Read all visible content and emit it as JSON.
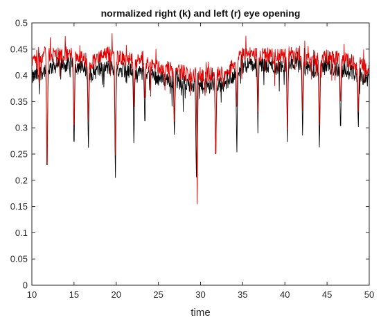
{
  "chart_data": {
    "type": "line",
    "title": "normalized right (k) and left (r) eye opening",
    "xlabel": "time",
    "ylabel": "",
    "xlim": [
      10,
      50
    ],
    "ylim": [
      0,
      0.5
    ],
    "xticks": [
      "10",
      "15",
      "20",
      "25",
      "30",
      "35",
      "40",
      "45",
      "50"
    ],
    "yticks": [
      "0",
      "0.05",
      "0.1",
      "0.15",
      "0.2",
      "0.25",
      "0.3",
      "0.35",
      "0.4",
      "0.45",
      "0.5"
    ],
    "grid": false,
    "legend": "none",
    "series": [
      {
        "color": "#000000",
        "baseline": [
          [
            10,
            0.395
          ],
          [
            11.5,
            0.41
          ],
          [
            13,
            0.42
          ],
          [
            15,
            0.42
          ],
          [
            17,
            0.405
          ],
          [
            19,
            0.415
          ],
          [
            21,
            0.41
          ],
          [
            23,
            0.405
          ],
          [
            25,
            0.395
          ],
          [
            27,
            0.39
          ],
          [
            29,
            0.38
          ],
          [
            31,
            0.38
          ],
          [
            33,
            0.385
          ],
          [
            35,
            0.42
          ],
          [
            37,
            0.42
          ],
          [
            39,
            0.415
          ],
          [
            41,
            0.425
          ],
          [
            43,
            0.41
          ],
          [
            45,
            0.415
          ],
          [
            47,
            0.41
          ],
          [
            49,
            0.4
          ],
          [
            50,
            0.39
          ]
        ],
        "blinks": [
          [
            11.8,
            0.18
          ],
          [
            15.0,
            0.235
          ],
          [
            16.7,
            0.245
          ],
          [
            19.9,
            0.18
          ],
          [
            22.1,
            0.255
          ],
          [
            23.4,
            0.29
          ],
          [
            26.9,
            0.275
          ],
          [
            29.5,
            0.185
          ],
          [
            31.8,
            0.215
          ],
          [
            34.3,
            0.235
          ],
          [
            36.8,
            0.29
          ],
          [
            40.3,
            0.255
          ],
          [
            42.1,
            0.27
          ],
          [
            44.1,
            0.245
          ],
          [
            46.6,
            0.275
          ],
          [
            48.7,
            0.29
          ]
        ]
      },
      {
        "color": "#e00000",
        "baseline": [
          [
            10,
            0.43
          ],
          [
            11.5,
            0.44
          ],
          [
            13,
            0.44
          ],
          [
            15,
            0.44
          ],
          [
            17,
            0.425
          ],
          [
            19,
            0.44
          ],
          [
            21,
            0.43
          ],
          [
            23,
            0.425
          ],
          [
            25,
            0.415
          ],
          [
            27,
            0.41
          ],
          [
            29,
            0.4
          ],
          [
            31,
            0.4
          ],
          [
            33,
            0.405
          ],
          [
            35,
            0.44
          ],
          [
            37,
            0.44
          ],
          [
            39,
            0.435
          ],
          [
            41,
            0.44
          ],
          [
            43,
            0.43
          ],
          [
            45,
            0.435
          ],
          [
            47,
            0.43
          ],
          [
            49,
            0.42
          ],
          [
            50,
            0.41
          ]
        ],
        "blinks": [
          [
            11.8,
            0.175
          ],
          [
            15.0,
            0.27
          ],
          [
            16.7,
            0.3
          ],
          [
            19.9,
            0.225
          ],
          [
            22.1,
            0.33
          ],
          [
            23.4,
            0.34
          ],
          [
            26.9,
            0.3
          ],
          [
            29.6,
            0.155
          ],
          [
            31.8,
            0.21
          ],
          [
            34.3,
            0.33
          ],
          [
            36.8,
            0.33
          ],
          [
            40.3,
            0.28
          ],
          [
            42.1,
            0.32
          ],
          [
            44.1,
            0.29
          ],
          [
            46.6,
            0.33
          ],
          [
            48.7,
            0.32
          ]
        ]
      }
    ]
  }
}
